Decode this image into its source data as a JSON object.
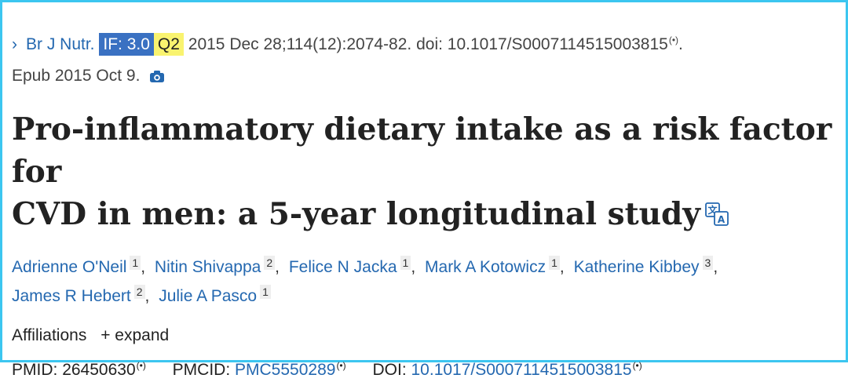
{
  "citation": {
    "journal": "Br J Nutr.",
    "impact_factor": "IF: 3.0",
    "quartile": "Q2",
    "details": "2015 Dec 28;114(12):2074-82. doi: 10.1017/S0007114515003815",
    "signal_glyph": "(•)",
    "trailing_period": ".",
    "epub": "Epub 2015 Oct 9."
  },
  "title": {
    "line1": "Pro-inflammatory dietary intake as a risk factor for",
    "line2": "CVD in men: a 5-year longitudinal study"
  },
  "authors": [
    {
      "name": "Adrienne O'Neil",
      "aff": "1"
    },
    {
      "name": "Nitin Shivappa",
      "aff": "2"
    },
    {
      "name": "Felice N Jacka",
      "aff": "1"
    },
    {
      "name": "Mark A Kotowicz",
      "aff": "1"
    },
    {
      "name": "Katherine Kibbey",
      "aff": "3"
    },
    {
      "name": "James R Hebert",
      "aff": "2"
    },
    {
      "name": "Julie A Pasco",
      "aff": "1"
    }
  ],
  "affiliations": {
    "label": "Affiliations",
    "expand_label": "+ expand"
  },
  "identifiers": {
    "pmid_label": "PMID:",
    "pmid": "26450630",
    "pmcid_label": "PMCID:",
    "pmcid": "PMC5550289",
    "doi_label": "DOI:",
    "doi": "10.1017/S0007114515003815"
  },
  "icons": {
    "journal_chevron": "chevron-right-icon",
    "epub_camera": "camera-icon",
    "translate": "translate-icon",
    "signal": "signal-icon"
  },
  "colors": {
    "border": "#3cc6f0",
    "link": "#2468b0",
    "if_badge": "#3a71c2",
    "quartile_badge": "#f9f36f"
  }
}
